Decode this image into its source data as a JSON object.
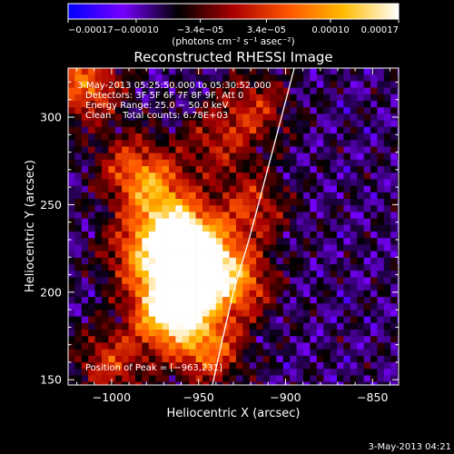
{
  "chart_data": {
    "type": "heatmap",
    "title": "Reconstructed RHESSI Image",
    "xlabel": "Heliocentric X (arcsec)",
    "ylabel": "Heliocentric Y (arcsec)",
    "xlim": [
      -1025,
      -835
    ],
    "ylim": [
      147,
      328
    ],
    "x_ticks": [
      {
        "value": -1000,
        "label": "−1000"
      },
      {
        "value": -950,
        "label": "−950"
      },
      {
        "value": -900,
        "label": "−900"
      },
      {
        "value": -850,
        "label": "−850"
      }
    ],
    "y_ticks": [
      {
        "value": 150,
        "label": "150"
      },
      {
        "value": 200,
        "label": "200"
      },
      {
        "value": 250,
        "label": "250"
      },
      {
        "value": 300,
        "label": "300"
      }
    ],
    "colorbar": {
      "range": [
        -0.00017,
        0.00017
      ],
      "tick_values": [
        -0.00017,
        -0.0001,
        -3.4e-05,
        3.4e-05,
        0.0001,
        0.00017
      ],
      "tick_labels": [
        "−0.00017",
        "−0.00010",
        "−3.4e−05",
        "3.4e−05",
        "0.00010",
        "0.00017"
      ],
      "units": "(photons cm⁻² s⁻¹ asec⁻²)",
      "colormap": [
        "#0000ff",
        "#7700ff",
        "#000000",
        "#aa0000",
        "#ff5500",
        "#ffbb00",
        "#ffffff"
      ]
    },
    "annotations": {
      "time_range": "3-May-2013 05:25:50.000 to 05:30:52.000",
      "detectors": "Detectors: 3F 5F 6F 7F 8F 9F, Att 0",
      "energy_range": "Energy Range: 25.0 − 50.0 keV",
      "method": "Clean    Total counts: 6.78E+03",
      "peak": "Position of Peak = [−963,231]"
    },
    "peak_position": [
      -963,
      231
    ],
    "limb_curve": [
      [
        -942,
        147
      ],
      [
        -937,
        170
      ],
      [
        -930,
        200
      ],
      [
        -921,
        230
      ],
      [
        -913,
        260
      ],
      [
        -905,
        290
      ],
      [
        -895,
        328
      ]
    ],
    "emission_sources": [
      {
        "x": -962,
        "y": 232,
        "level": 0.85
      },
      {
        "x": -958,
        "y": 205,
        "level": 0.9
      },
      {
        "x": -968,
        "y": 188,
        "level": 0.8
      },
      {
        "x": -948,
        "y": 220,
        "level": 0.6
      },
      {
        "x": -975,
        "y": 258,
        "level": 0.5
      },
      {
        "x": -945,
        "y": 168,
        "level": 0.55
      },
      {
        "x": -928,
        "y": 205,
        "level": 0.55
      },
      {
        "x": -990,
        "y": 272,
        "level": 0.35
      },
      {
        "x": -1015,
        "y": 318,
        "level": 0.55
      },
      {
        "x": -920,
        "y": 248,
        "level": 0.4
      },
      {
        "x": -1000,
        "y": 160,
        "level": 0.4
      },
      {
        "x": -918,
        "y": 305,
        "level": 0.35
      },
      {
        "x": -985,
        "y": 222,
        "level": 0.45
      },
      {
        "x": -940,
        "y": 285,
        "level": 0.3
      }
    ]
  },
  "footer": {
    "timestamp": "3-May-2013 04:21"
  }
}
